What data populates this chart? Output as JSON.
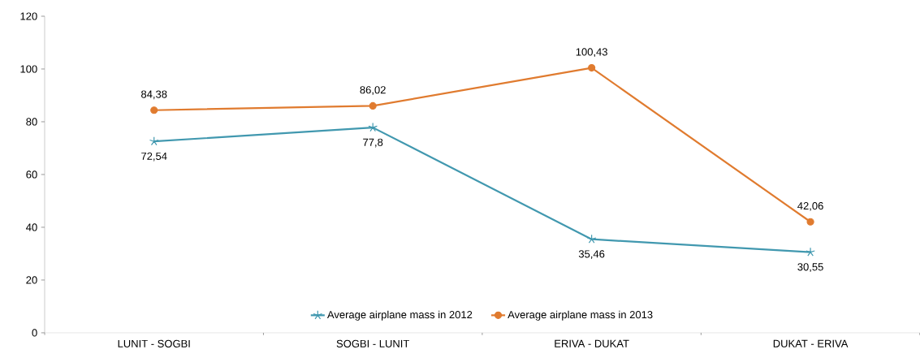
{
  "chart_data": {
    "type": "line",
    "categories": [
      "LUNIT - SOGBI",
      "SOGBI - LUNIT",
      "ERIVA - DUKAT",
      "DUKAT - ERIVA"
    ],
    "series": [
      {
        "name": "Average airplane mass in 2012",
        "color": "#4198af",
        "marker": "cross",
        "values": [
          72.54,
          77.8,
          35.46,
          30.55
        ],
        "value_labels": [
          "72,54",
          "77,8",
          "35,46",
          "30,55"
        ]
      },
      {
        "name": "Average airplane mass in 2013",
        "color": "#e07b2f",
        "marker": "circle",
        "values": [
          84.38,
          86.02,
          100.43,
          42.06
        ],
        "value_labels": [
          "84,38",
          "86,02",
          "100,43",
          "42,06"
        ]
      }
    ],
    "ylim": [
      0,
      120
    ],
    "yticks": [
      0,
      20,
      40,
      60,
      80,
      100,
      120
    ],
    "grid": false,
    "legend": "bottom",
    "line_style": "solid"
  }
}
